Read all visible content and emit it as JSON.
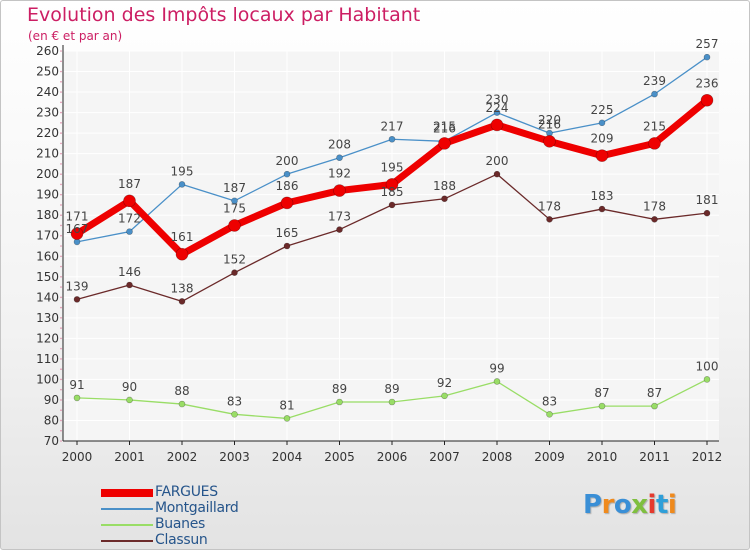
{
  "title": "Evolution des Impôts locaux par Habitant",
  "subtitle": "(en € et par an)",
  "logo": {
    "text": "Proxiti",
    "letter_colors": [
      "#3a8fd6",
      "#ef8a1d",
      "#3a8fd6",
      "#7fbf3f",
      "#e53a2e",
      "#2e9fd9",
      "#ef8a1d"
    ]
  },
  "chart_data": {
    "type": "line",
    "x": [
      "2000",
      "2001",
      "2002",
      "2003",
      "2004",
      "2005",
      "2006",
      "2007",
      "2008",
      "2009",
      "2010",
      "2011",
      "2012"
    ],
    "ylim": [
      70,
      260
    ],
    "y_ticks": [
      70,
      80,
      90,
      100,
      110,
      120,
      130,
      140,
      150,
      160,
      170,
      180,
      190,
      200,
      210,
      220,
      230,
      240,
      250,
      260
    ],
    "grid": true,
    "legend_position": "bottom-left",
    "series": [
      {
        "name": "FARGUES",
        "color": "#ee0000",
        "values": [
          171,
          187,
          161,
          175,
          186,
          192,
          195,
          215,
          224,
          216,
          209,
          215,
          236
        ]
      },
      {
        "name": "Montgaillard",
        "color": "#4a90c8",
        "values": [
          167,
          172,
          195,
          187,
          200,
          208,
          217,
          216,
          230,
          220,
          225,
          239,
          257
        ]
      },
      {
        "name": "Buanes",
        "color": "#99dd66",
        "values": [
          91,
          90,
          88,
          83,
          81,
          89,
          89,
          92,
          99,
          83,
          87,
          87,
          100
        ]
      },
      {
        "name": "Classun",
        "color": "#6b2a2a",
        "values": [
          139,
          146,
          138,
          152,
          165,
          173,
          185,
          188,
          200,
          178,
          183,
          178,
          181
        ]
      }
    ],
    "data_labels": [
      {
        "series": "FARGUES",
        "labels": [
          "171",
          "187",
          "161",
          "175",
          "186",
          "192",
          "195",
          "215",
          "224",
          "216",
          "209",
          "215",
          "236"
        ]
      },
      {
        "series": "Montgaillard",
        "labels": [
          "167",
          "172",
          "195",
          "187",
          "200",
          "208",
          "217",
          "216",
          "230",
          "220",
          "225",
          "239",
          "257"
        ]
      },
      {
        "series": "Buanes",
        "labels": [
          "91",
          "90",
          "88",
          "83",
          "81",
          "89",
          "89",
          "92",
          "99",
          "83",
          "87",
          "87",
          "100"
        ]
      },
      {
        "series": "Classun",
        "labels": [
          "139",
          "146",
          "138",
          "152",
          "165",
          "173",
          "185",
          "188",
          "200",
          "178",
          "183",
          "178",
          "181"
        ]
      }
    ]
  }
}
